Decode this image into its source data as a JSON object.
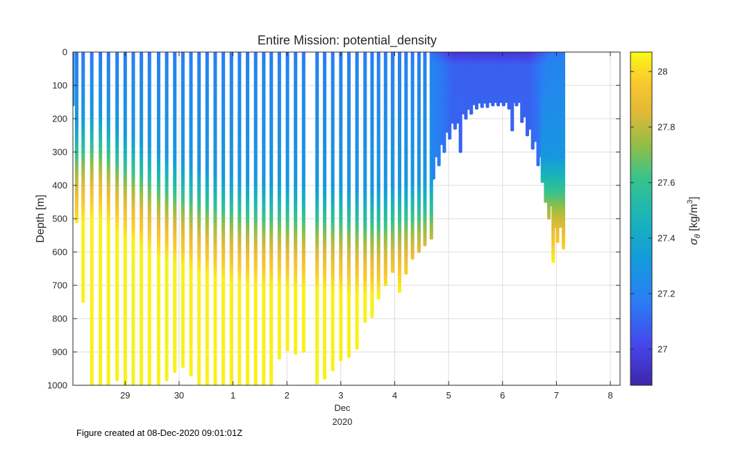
{
  "footer": "Figure created at 08-Dec-2020 09:01:01Z",
  "colormap": "parula",
  "chart_data": {
    "type": "scatter",
    "title": "Entire Mission: potential_density",
    "ylabel": "Depth [m]",
    "x_month_label": "Dec",
    "x_year_label": "2020",
    "colorbar_label": "σθ [kg/m³]",
    "colorbar_label_parts": {
      "sym": "σ",
      "sub": "θ",
      "unit": "[kg/m",
      "sup": "3",
      "close": "]"
    },
    "x_tick_labels": [
      "29",
      "30",
      "1",
      "2",
      "3",
      "4",
      "5",
      "6",
      "7",
      "8"
    ],
    "x_tick_days": [
      0,
      1,
      2,
      3,
      4,
      5,
      6,
      7,
      8,
      9
    ],
    "xlim_days": [
      -0.97,
      9.18
    ],
    "y_tick_labels": [
      "0",
      "100",
      "200",
      "300",
      "400",
      "500",
      "600",
      "700",
      "800",
      "900",
      "1000"
    ],
    "y_ticks": [
      0,
      100,
      200,
      300,
      400,
      500,
      600,
      700,
      800,
      900,
      1000
    ],
    "ylim": [
      0,
      1000
    ],
    "y_reversed": true,
    "colorbar_ticks": [
      27,
      27.2,
      27.4,
      27.6,
      27.8,
      28
    ],
    "colorbar_tick_labels": [
      "27",
      "27.2",
      "27.4",
      "27.6",
      "27.8",
      "28"
    ],
    "clim": [
      26.87,
      28.07
    ],
    "grid": true,
    "profiles": [
      {
        "day": -0.97,
        "max_depth": 160,
        "pyc": 370
      },
      {
        "day": -0.9,
        "max_depth": 510,
        "pyc": 360
      },
      {
        "day": -0.78,
        "max_depth": 750,
        "pyc": 350
      },
      {
        "day": -0.62,
        "max_depth": 1000,
        "pyc": 340
      },
      {
        "day": -0.46,
        "max_depth": 1000,
        "pyc": 340
      },
      {
        "day": -0.31,
        "max_depth": 1000,
        "pyc": 360
      },
      {
        "day": -0.15,
        "max_depth": 985,
        "pyc": 380
      },
      {
        "day": 0.0,
        "max_depth": 1000,
        "pyc": 400
      },
      {
        "day": 0.15,
        "max_depth": 1000,
        "pyc": 410
      },
      {
        "day": 0.3,
        "max_depth": 1000,
        "pyc": 425
      },
      {
        "day": 0.45,
        "max_depth": 1000,
        "pyc": 440
      },
      {
        "day": 0.62,
        "max_depth": 1000,
        "pyc": 455
      },
      {
        "day": 0.77,
        "max_depth": 985,
        "pyc": 465
      },
      {
        "day": 0.92,
        "max_depth": 960,
        "pyc": 475
      },
      {
        "day": 1.07,
        "max_depth": 945,
        "pyc": 485
      },
      {
        "day": 1.22,
        "max_depth": 970,
        "pyc": 495
      },
      {
        "day": 1.37,
        "max_depth": 1000,
        "pyc": 505
      },
      {
        "day": 1.52,
        "max_depth": 1000,
        "pyc": 510
      },
      {
        "day": 1.67,
        "max_depth": 1000,
        "pyc": 520
      },
      {
        "day": 1.82,
        "max_depth": 1000,
        "pyc": 525
      },
      {
        "day": 1.97,
        "max_depth": 1000,
        "pyc": 530
      },
      {
        "day": 2.12,
        "max_depth": 1000,
        "pyc": 535
      },
      {
        "day": 2.27,
        "max_depth": 1000,
        "pyc": 540
      },
      {
        "day": 2.42,
        "max_depth": 1000,
        "pyc": 540
      },
      {
        "day": 2.57,
        "max_depth": 1000,
        "pyc": 545
      },
      {
        "day": 2.71,
        "max_depth": 1000,
        "pyc": 545
      },
      {
        "day": 2.86,
        "max_depth": 920,
        "pyc": 545
      },
      {
        "day": 3.01,
        "max_depth": 895,
        "pyc": 550
      },
      {
        "day": 3.16,
        "max_depth": 905,
        "pyc": 550
      },
      {
        "day": 3.31,
        "max_depth": 900,
        "pyc": 550
      },
      {
        "day": 3.56,
        "max_depth": 995,
        "pyc": 555
      },
      {
        "day": 3.7,
        "max_depth": 980,
        "pyc": 555
      },
      {
        "day": 3.85,
        "max_depth": 955,
        "pyc": 560
      },
      {
        "day": 4.0,
        "max_depth": 925,
        "pyc": 560
      },
      {
        "day": 4.15,
        "max_depth": 915,
        "pyc": 565
      },
      {
        "day": 4.3,
        "max_depth": 890,
        "pyc": 565
      },
      {
        "day": 4.45,
        "max_depth": 810,
        "pyc": 570
      },
      {
        "day": 4.58,
        "max_depth": 795,
        "pyc": 570
      },
      {
        "day": 4.7,
        "max_depth": 740,
        "pyc": 570
      },
      {
        "day": 4.83,
        "max_depth": 700,
        "pyc": 565
      },
      {
        "day": 4.96,
        "max_depth": 660,
        "pyc": 560
      },
      {
        "day": 5.09,
        "max_depth": 720,
        "pyc": 555
      },
      {
        "day": 5.21,
        "max_depth": 665,
        "pyc": 550
      },
      {
        "day": 5.33,
        "max_depth": 620,
        "pyc": 545
      },
      {
        "day": 5.45,
        "max_depth": 600,
        "pyc": 540
      },
      {
        "day": 5.56,
        "max_depth": 580,
        "pyc": 535
      },
      {
        "day": 5.68,
        "max_depth": 560,
        "pyc": 530
      }
    ],
    "cap_samples": [
      {
        "day": 5.72,
        "max_depth": 380
      },
      {
        "day": 5.82,
        "max_depth": 340
      },
      {
        "day": 5.92,
        "max_depth": 300
      },
      {
        "day": 6.02,
        "max_depth": 260
      },
      {
        "day": 6.12,
        "max_depth": 230
      },
      {
        "day": 6.22,
        "max_depth": 300
      },
      {
        "day": 6.32,
        "max_depth": 200
      },
      {
        "day": 6.42,
        "max_depth": 185
      },
      {
        "day": 6.52,
        "max_depth": 170
      },
      {
        "day": 6.62,
        "max_depth": 165
      },
      {
        "day": 6.72,
        "max_depth": 165
      },
      {
        "day": 6.82,
        "max_depth": 160
      },
      {
        "day": 6.92,
        "max_depth": 160
      },
      {
        "day": 7.02,
        "max_depth": 160
      },
      {
        "day": 7.12,
        "max_depth": 170
      },
      {
        "day": 7.18,
        "max_depth": 235
      },
      {
        "day": 7.26,
        "max_depth": 160
      },
      {
        "day": 7.36,
        "max_depth": 210
      },
      {
        "day": 7.46,
        "max_depth": 250
      },
      {
        "day": 7.56,
        "max_depth": 290
      },
      {
        "day": 7.66,
        "max_depth": 340
      },
      {
        "day": 7.74,
        "max_depth": 390
      },
      {
        "day": 7.8,
        "max_depth": 450
      },
      {
        "day": 7.86,
        "max_depth": 500
      },
      {
        "day": 7.94,
        "max_depth": 630
      },
      {
        "day": 8.02,
        "max_depth": 570
      },
      {
        "day": 8.13,
        "max_depth": 590
      }
    ],
    "surface_density_east": 26.95,
    "surface_density_west": 27.15,
    "mid_density": 27.3,
    "deep_density": 28.05
  }
}
